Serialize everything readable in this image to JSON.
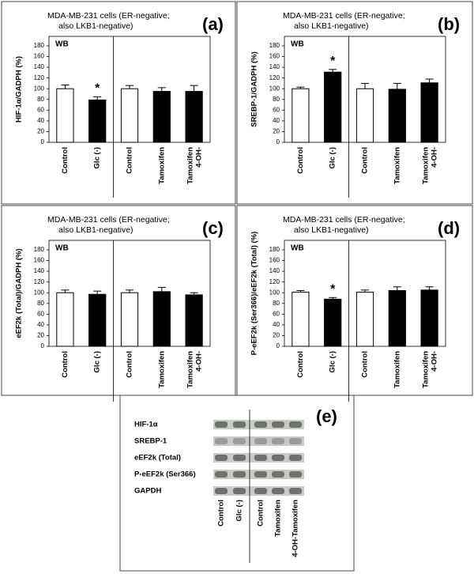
{
  "chart_data": [
    {
      "type": "bar",
      "panel_label": "(a)",
      "title": "MDA-MB-231 cells (ER-negative; also LKB1-negative)",
      "annotation": "WB",
      "y_label": "HIF-1α/GADPH (%)",
      "categories": [
        "Control",
        "Glc (-)",
        "Control",
        "Tamoxifen",
        "Tamoxifen 4-OH-"
      ],
      "values": [
        100,
        79,
        100,
        95,
        95
      ],
      "errors": [
        7,
        6,
        6,
        7,
        11
      ],
      "colors": [
        "#ffffff",
        "#000000",
        "#ffffff",
        "#000000",
        "#000000"
      ],
      "significance": [
        {
          "text": "*",
          "category": "Glc (-)"
        }
      ],
      "ylim": [
        0,
        180
      ],
      "yticks": [
        0,
        20,
        40,
        60,
        80,
        100,
        120,
        140,
        160,
        180
      ]
    },
    {
      "type": "bar",
      "panel_label": "(b)",
      "title": "MDA-MB-231 cells (ER-negative; also LKB1-negative)",
      "annotation": "WB",
      "y_label": "SREBP-1/GADPH (%)",
      "categories": [
        "Control",
        "Glc (-)",
        "Control",
        "Tamoxifen",
        "Tamoxifen 4-OH-"
      ],
      "values": [
        100,
        131,
        100,
        99,
        111
      ],
      "errors": [
        3,
        5,
        10,
        11,
        7
      ],
      "colors": [
        "#ffffff",
        "#000000",
        "#ffffff",
        "#000000",
        "#000000"
      ],
      "significance": [
        {
          "text": "*",
          "category": "Glc (-)"
        }
      ],
      "ylim": [
        0,
        180
      ],
      "yticks": [
        0,
        20,
        40,
        60,
        80,
        100,
        120,
        140,
        160,
        180
      ]
    },
    {
      "type": "bar",
      "panel_label": "(c)",
      "title": "MDA-MB-231 cells (ER-negative; also LKB1-negative)",
      "annotation": "WB",
      "y_label": "eEF2k (Total)/GADPH (%)",
      "categories": [
        "Control",
        "Glc (-)",
        "Control",
        "Tamoxifen",
        "Tamoxifen 4-OH-"
      ],
      "values": [
        100,
        97,
        100,
        102,
        96
      ],
      "errors": [
        5,
        6,
        5,
        8,
        4
      ],
      "colors": [
        "#ffffff",
        "#000000",
        "#ffffff",
        "#000000",
        "#000000"
      ],
      "ylim": [
        0,
        180
      ],
      "yticks": [
        0,
        20,
        40,
        60,
        80,
        100,
        120,
        140,
        160,
        180
      ]
    },
    {
      "type": "bar",
      "panel_label": "(d)",
      "title": "MDA-MB-231 cells (ER-negative; also LKB1-negative)",
      "annotation": "WB",
      "y_label": "P-eEF2k (Ser366)/eEF2k (Total) (%)",
      "categories": [
        "Control",
        "Glc (-)",
        "Control",
        "Tamoxifen",
        "Tamoxifen 4-OH-"
      ],
      "values": [
        101,
        88,
        101,
        104,
        105
      ],
      "errors": [
        3,
        3,
        4,
        7,
        6
      ],
      "colors": [
        "#ffffff",
        "#000000",
        "#ffffff",
        "#000000",
        "#000000"
      ],
      "significance": [
        {
          "text": "*",
          "category": "Glc (-)"
        }
      ],
      "ylim": [
        0,
        180
      ],
      "yticks": [
        0,
        20,
        40,
        60,
        80,
        100,
        120,
        140,
        160,
        180
      ]
    }
  ],
  "blot": {
    "panel_label": "(e)",
    "rows": [
      "HIF-1α",
      "SREBP-1",
      "eEF2k (Total)",
      "P-eEF2k (Ser366)",
      "GAPDH"
    ],
    "lanes": [
      "Control",
      "Glc (-)",
      "Control",
      "Tamoxifen",
      "4-OH-Tamoxifen"
    ]
  }
}
